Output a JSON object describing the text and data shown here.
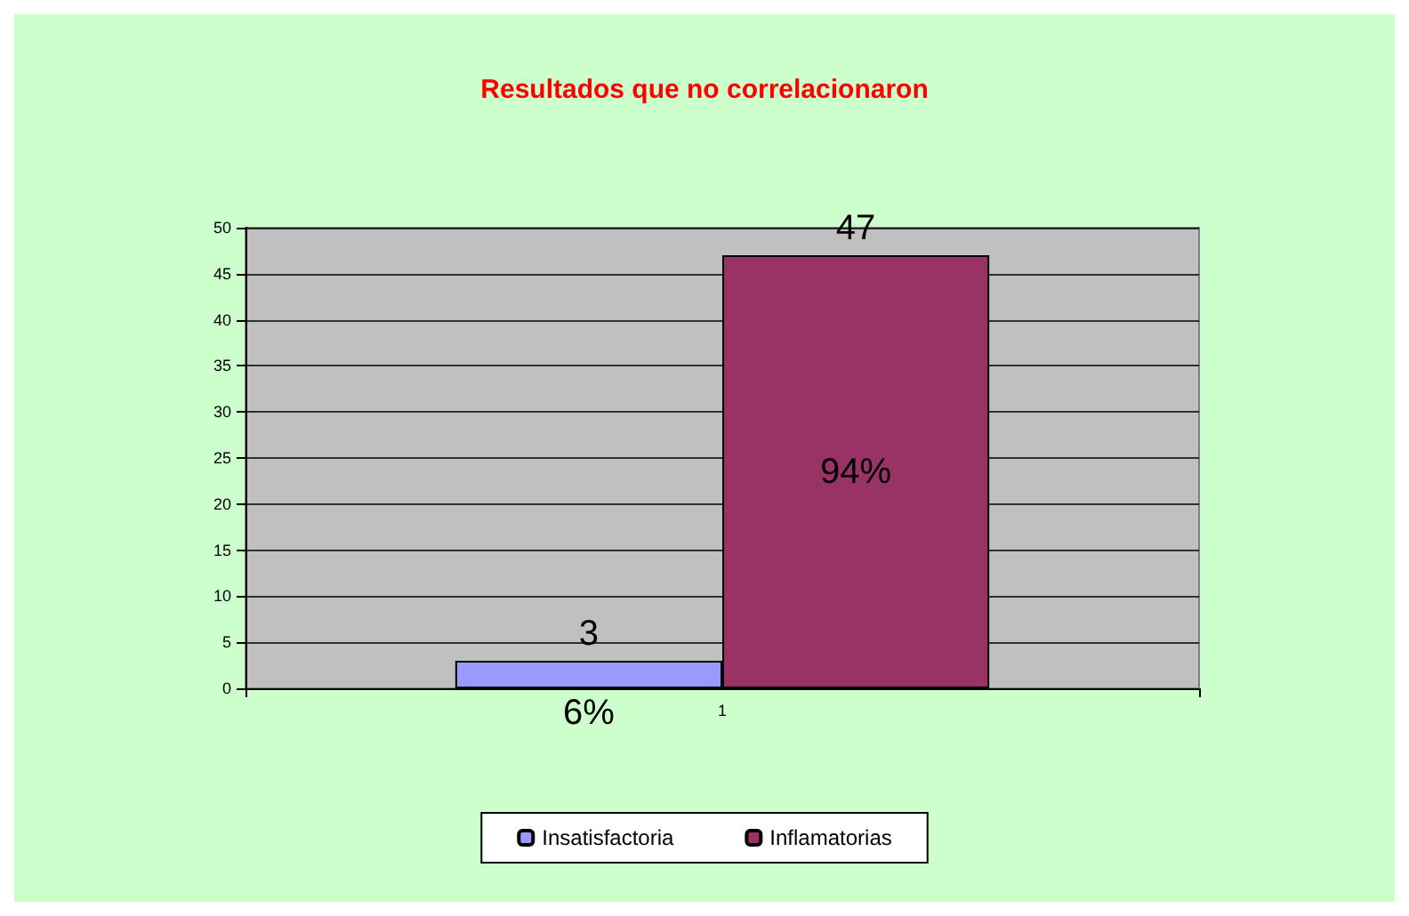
{
  "chart_data": {
    "type": "bar",
    "title": "Resultados que no correlacionaron",
    "categories": [
      "1"
    ],
    "series": [
      {
        "name": "Insatisfactoria",
        "color": "#9999ff",
        "values": [
          3
        ]
      },
      {
        "name": "Inflamatorias",
        "color": "#993366",
        "values": [
          47
        ]
      }
    ],
    "annotations": [
      "6%",
      "94%"
    ],
    "data_labels": true,
    "ylim": [
      0,
      50
    ],
    "yticks": [
      0,
      5,
      10,
      15,
      20,
      25,
      30,
      35,
      40,
      45,
      50
    ],
    "grid": "y",
    "legend": "bottom"
  }
}
